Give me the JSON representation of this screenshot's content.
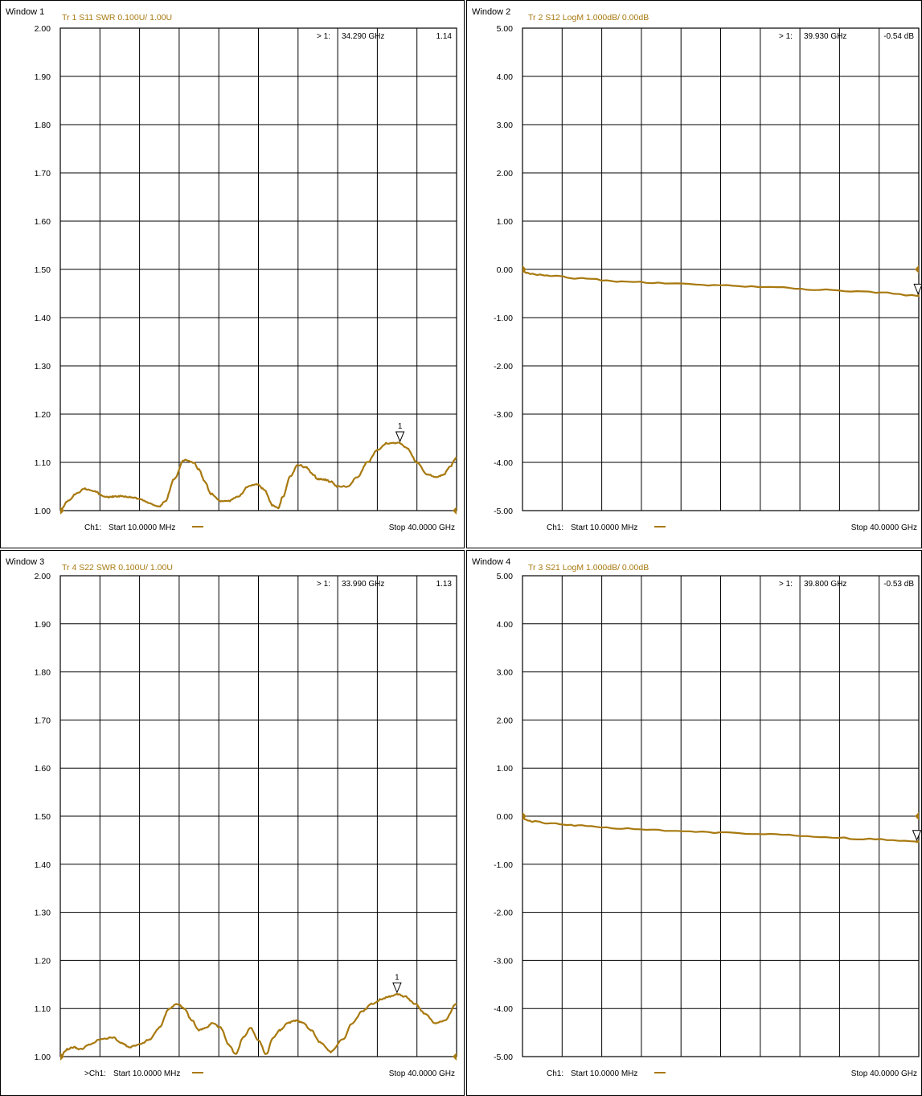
{
  "colors": {
    "trace": "#a8790f",
    "trace_dark": "#8c6408",
    "grid": "#000000",
    "text": "#000000",
    "background": "#ffffff"
  },
  "windows": [
    {
      "window_label": "Window 1",
      "trace_label": "Tr 1  S11 SWR 0.100U/  1.00U",
      "marker_readout": {
        "index": "> 1:",
        "freq": "34.290 GHz",
        "value": "1.14"
      },
      "marker_number": "1",
      "footer_start_prefix": "Ch1:",
      "footer_start": "Start  10.0000 MHz",
      "footer_stop": "Stop  40.0000 GHz",
      "y_tick_labels": [
        "2.00",
        "1.90",
        "1.80",
        "1.70",
        "1.60",
        "1.50",
        "1.40",
        "1.30",
        "1.20",
        "1.10",
        "1.00"
      ]
    },
    {
      "window_label": "Window 2",
      "trace_label": "Tr 2  S12 LogM 1.000dB/  0.00dB",
      "marker_readout": {
        "index": "> 1:",
        "freq": "39.930 GHz",
        "value": "-0.54 dB"
      },
      "marker_number": "",
      "footer_start_prefix": "Ch1:",
      "footer_start": "Start  10.0000 MHz",
      "footer_stop": "Stop  40.0000 GHz",
      "y_tick_labels": [
        "5.00",
        "4.00",
        "3.00",
        "2.00",
        "1.00",
        "0.00",
        "-1.00",
        "-2.00",
        "-3.00",
        "-4.00",
        "-5.00"
      ]
    },
    {
      "window_label": "Window 3",
      "trace_label": "Tr 4  S22 SWR 0.100U/  1.00U",
      "marker_readout": {
        "index": "> 1:",
        "freq": "33.990 GHz",
        "value": "1.13"
      },
      "marker_number": "1",
      "footer_start_prefix": ">Ch1:",
      "footer_start": "Start  10.0000 MHz",
      "footer_stop": "Stop  40.0000 GHz",
      "y_tick_labels": [
        "2.00",
        "1.90",
        "1.80",
        "1.70",
        "1.60",
        "1.50",
        "1.40",
        "1.30",
        "1.20",
        "1.10",
        "1.00"
      ]
    },
    {
      "window_label": "Window 4",
      "trace_label": "Tr 3  S21 LogM 1.000dB/  0.00dB",
      "marker_readout": {
        "index": "> 1:",
        "freq": "39.800 GHz",
        "value": "-0.53 dB"
      },
      "marker_number": "",
      "footer_start_prefix": "Ch1:",
      "footer_start": "Start  10.0000 MHz",
      "footer_stop": "Stop  40.0000 GHz",
      "y_tick_labels": [
        "5.00",
        "4.00",
        "3.00",
        "2.00",
        "1.00",
        "0.00",
        "-1.00",
        "-2.00",
        "-3.00",
        "-4.00",
        "-5.00"
      ]
    }
  ],
  "chart_data": [
    {
      "type": "line",
      "parameter": "S11",
      "format": "SWR",
      "x_unit": "GHz",
      "xlim": [
        0.01,
        40
      ],
      "ylim": [
        1.0,
        2.0
      ],
      "grid": true,
      "series": [
        {
          "x": [
            0.01,
            0.8,
            1.6,
            2.5,
            3.5,
            4.3,
            5.0,
            5.6,
            6.2,
            7.0,
            8.0,
            9.0,
            10.0,
            10.6,
            11.5,
            12.5,
            13.5,
            14.0,
            14.6,
            15.2,
            16.2,
            17.0,
            18.0,
            19.0,
            19.8,
            20.5,
            21.5,
            22.0,
            22.5,
            23.2,
            24.0,
            24.8,
            25.5,
            26.0,
            26.6,
            27.3,
            28.0,
            29.0,
            30.0,
            31.0,
            32.0,
            33.0,
            34.29,
            35.0,
            36.0,
            37.0,
            38.0,
            38.7,
            39.3,
            40.0
          ],
          "y": [
            1.0,
            1.02,
            1.035,
            1.045,
            1.04,
            1.03,
            1.028,
            1.03,
            1.03,
            1.028,
            1.025,
            1.015,
            1.008,
            1.02,
            1.065,
            1.105,
            1.1,
            1.085,
            1.06,
            1.035,
            1.02,
            1.02,
            1.03,
            1.05,
            1.055,
            1.045,
            1.01,
            1.005,
            1.03,
            1.07,
            1.095,
            1.09,
            1.075,
            1.065,
            1.065,
            1.06,
            1.05,
            1.05,
            1.07,
            1.1,
            1.125,
            1.14,
            1.14,
            1.13,
            1.1,
            1.075,
            1.07,
            1.075,
            1.09,
            1.11
          ]
        }
      ],
      "marker": {
        "x": 34.29,
        "y": 1.14
      }
    },
    {
      "type": "line",
      "parameter": "S12",
      "format": "LogM",
      "x_unit": "GHz",
      "y_unit": "dB",
      "xlim": [
        0.01,
        40
      ],
      "ylim": [
        -5,
        5
      ],
      "grid": true,
      "series": [
        {
          "x": [
            0.01,
            1,
            3,
            6,
            10,
            15,
            20,
            25,
            30,
            35,
            39.93,
            40
          ],
          "y": [
            -0.05,
            -0.1,
            -0.14,
            -0.19,
            -0.25,
            -0.29,
            -0.33,
            -0.37,
            -0.42,
            -0.47,
            -0.54,
            -0.54
          ]
        }
      ],
      "marker": {
        "x": 39.93,
        "y": -0.54
      }
    },
    {
      "type": "line",
      "parameter": "S22",
      "format": "SWR",
      "x_unit": "GHz",
      "xlim": [
        0.01,
        40
      ],
      "ylim": [
        1.0,
        2.0
      ],
      "grid": true,
      "series": [
        {
          "x": [
            0.01,
            0.7,
            1.4,
            2.0,
            3.0,
            4.0,
            5.3,
            6.2,
            7.0,
            8.0,
            9.0,
            10.0,
            11.0,
            11.8,
            12.5,
            13.3,
            14.0,
            14.7,
            15.4,
            16.2,
            17.0,
            17.7,
            18.5,
            19.2,
            20.0,
            20.8,
            21.5,
            22.2,
            23.0,
            23.8,
            24.5,
            25.3,
            26.2,
            27.3,
            28.5,
            29.5,
            30.5,
            31.5,
            32.5,
            33.2,
            33.99,
            34.8,
            35.8,
            36.8,
            37.8,
            38.8,
            40.0
          ],
          "y": [
            1.0,
            1.015,
            1.02,
            1.015,
            1.025,
            1.035,
            1.04,
            1.028,
            1.02,
            1.025,
            1.035,
            1.06,
            1.1,
            1.11,
            1.1,
            1.075,
            1.055,
            1.06,
            1.07,
            1.06,
            1.025,
            1.005,
            1.04,
            1.06,
            1.035,
            1.005,
            1.04,
            1.055,
            1.07,
            1.075,
            1.07,
            1.055,
            1.03,
            1.01,
            1.035,
            1.07,
            1.095,
            1.11,
            1.12,
            1.125,
            1.13,
            1.125,
            1.11,
            1.09,
            1.07,
            1.075,
            1.11
          ]
        }
      ],
      "marker": {
        "x": 33.99,
        "y": 1.13
      }
    },
    {
      "type": "line",
      "parameter": "S21",
      "format": "LogM",
      "x_unit": "GHz",
      "y_unit": "dB",
      "xlim": [
        0.01,
        40
      ],
      "ylim": [
        -5,
        5
      ],
      "grid": true,
      "series": [
        {
          "x": [
            0.01,
            1,
            3,
            6,
            10,
            15,
            20,
            25,
            30,
            35,
            39.8,
            40
          ],
          "y": [
            -0.05,
            -0.11,
            -0.15,
            -0.2,
            -0.26,
            -0.3,
            -0.34,
            -0.38,
            -0.43,
            -0.48,
            -0.53,
            -0.53
          ]
        }
      ],
      "marker": {
        "x": 39.8,
        "y": -0.53
      }
    }
  ]
}
